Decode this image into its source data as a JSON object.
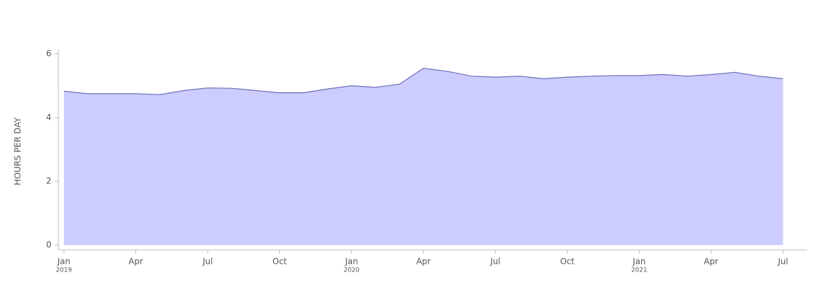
{
  "chart_data": {
    "type": "area",
    "y_label": "HOURS PER DAY",
    "x": [
      "2019-01",
      "2019-02",
      "2019-03",
      "2019-04",
      "2019-05",
      "2019-06",
      "2019-07",
      "2019-08",
      "2019-09",
      "2019-10",
      "2019-11",
      "2019-12",
      "2020-01",
      "2020-02",
      "2020-03",
      "2020-04",
      "2020-05",
      "2020-06",
      "2020-07",
      "2020-08",
      "2020-09",
      "2020-10",
      "2020-11",
      "2020-12",
      "2021-01",
      "2021-02",
      "2021-03",
      "2021-04",
      "2021-05",
      "2021-06",
      "2021-07"
    ],
    "values": [
      4.83,
      4.75,
      4.75,
      4.75,
      4.72,
      4.85,
      4.93,
      4.92,
      4.85,
      4.78,
      4.78,
      4.9,
      5.0,
      4.95,
      5.05,
      5.55,
      5.45,
      5.3,
      5.27,
      5.3,
      5.22,
      5.27,
      5.3,
      5.32,
      5.32,
      5.35,
      5.3,
      5.35,
      5.42,
      5.3,
      5.22
    ],
    "color": "#ccccff",
    "line_color": "#6a6ab8",
    "xlim": [
      "2019-01",
      "2021-08"
    ],
    "xticks": [
      {
        "value": "2019-01",
        "label": "Jan"
      },
      {
        "value": "2019-04",
        "label": "Apr"
      },
      {
        "value": "2019-07",
        "label": "Jul"
      },
      {
        "value": "2019-10",
        "label": "Oct"
      },
      {
        "value": "2020-01",
        "label": "Jan"
      },
      {
        "value": "2020-04",
        "label": "Apr"
      },
      {
        "value": "2020-07",
        "label": "Jul"
      },
      {
        "value": "2020-10",
        "label": "Oct"
      },
      {
        "value": "2021-01",
        "label": "Jan"
      },
      {
        "value": "2021-04",
        "label": "Apr"
      },
      {
        "value": "2021-07",
        "label": "Jul"
      }
    ],
    "xtick_years": [
      {
        "value": "2019-01",
        "label": "2019"
      },
      {
        "value": "2020-01",
        "label": "2020"
      },
      {
        "value": "2021-01",
        "label": "2021"
      }
    ],
    "ylim": [
      0,
      6.1
    ],
    "yticks": [
      0,
      2,
      4,
      6
    ]
  }
}
